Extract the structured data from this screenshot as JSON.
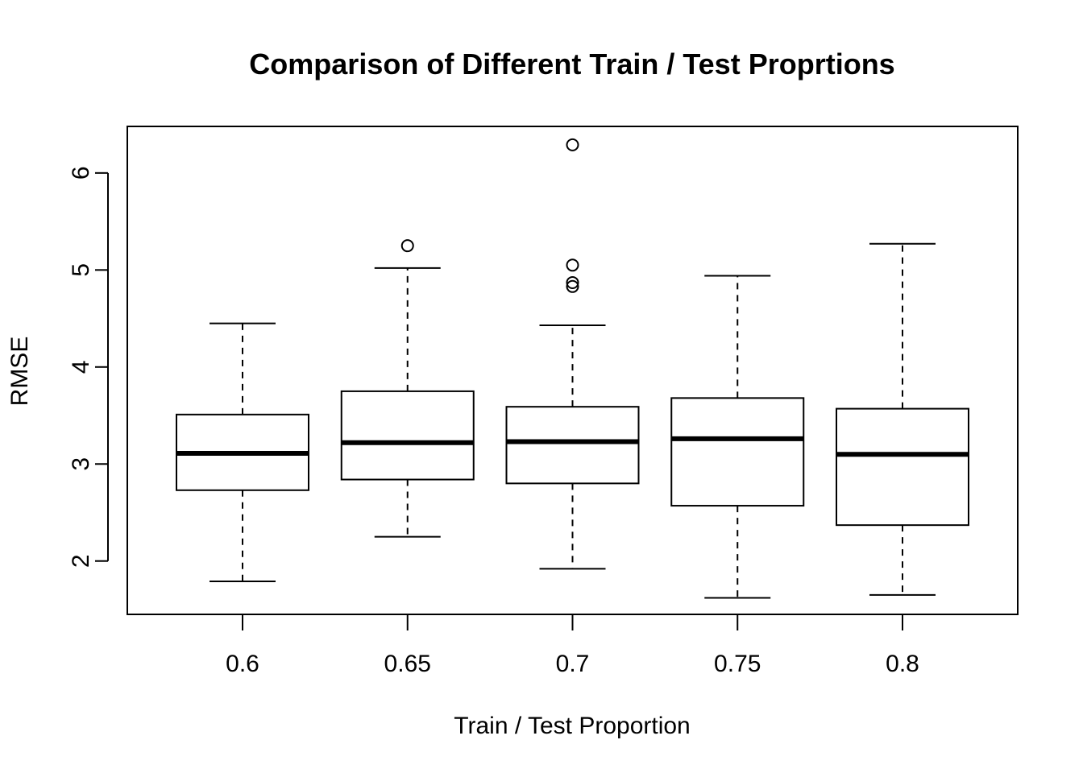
{
  "chart_data": {
    "type": "box",
    "title": "Comparison of Different Train / Test Proprtions",
    "xlabel": "Train / Test Proportion",
    "ylabel": "RMSE",
    "categories": [
      "0.6",
      "0.65",
      "0.7",
      "0.75",
      "0.8"
    ],
    "y_ticks": [
      "2",
      "3",
      "4",
      "5",
      "6"
    ],
    "ylim": [
      1.45,
      6.48
    ],
    "boxes": [
      {
        "category": "0.6",
        "whisker_low": 1.79,
        "q1": 2.73,
        "median": 3.11,
        "q3": 3.51,
        "whisker_high": 4.45,
        "outliers": []
      },
      {
        "category": "0.65",
        "whisker_low": 2.25,
        "q1": 2.84,
        "median": 3.22,
        "q3": 3.75,
        "whisker_high": 5.02,
        "outliers": [
          5.25
        ]
      },
      {
        "category": "0.7",
        "whisker_low": 1.92,
        "q1": 2.8,
        "median": 3.23,
        "q3": 3.59,
        "whisker_high": 4.43,
        "outliers": [
          6.29,
          5.05,
          4.87,
          4.83
        ]
      },
      {
        "category": "0.75",
        "whisker_low": 1.62,
        "q1": 2.57,
        "median": 3.26,
        "q3": 3.68,
        "whisker_high": 4.94,
        "outliers": []
      },
      {
        "category": "0.8",
        "whisker_low": 1.65,
        "q1": 2.37,
        "median": 3.1,
        "q3": 3.57,
        "whisker_high": 5.27,
        "outliers": []
      }
    ],
    "grid": false,
    "legend": "none"
  }
}
